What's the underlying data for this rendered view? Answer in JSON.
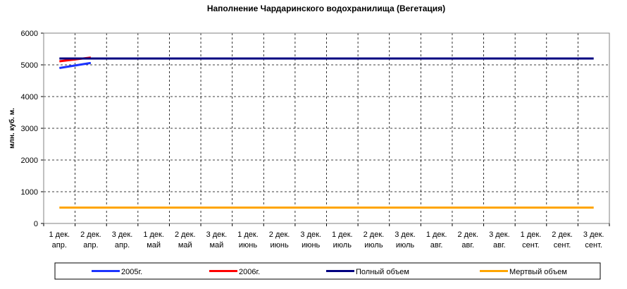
{
  "chart_data": {
    "type": "line",
    "title": "Наполнение Чардаринского водохранилища (Вегетация)",
    "y_label": "млн. куб. м.",
    "categories": [
      [
        "1 дек.",
        "апр."
      ],
      [
        "2 дек.",
        "апр."
      ],
      [
        "3 дек.",
        "апр."
      ],
      [
        "1 дек.",
        "май"
      ],
      [
        "2 дек.",
        "май"
      ],
      [
        "3 дек.",
        "май"
      ],
      [
        "1 дек.",
        "июнь"
      ],
      [
        "2 дек.",
        "июнь"
      ],
      [
        "3 дек.",
        "июнь"
      ],
      [
        "1 дек.",
        "июль"
      ],
      [
        "2 дек.",
        "июль"
      ],
      [
        "3 дек.",
        "июль"
      ],
      [
        "1 дек.",
        "авг."
      ],
      [
        "2 дек.",
        "авг."
      ],
      [
        "3 дек.",
        "авг."
      ],
      [
        "1 дек.",
        "сент."
      ],
      [
        "2 дек.",
        "сент."
      ],
      [
        "3 дек.",
        "сент."
      ]
    ],
    "series": [
      {
        "name": "2005г.",
        "color": "#1c34ff",
        "values": [
          4900,
          5060,
          null,
          null,
          null,
          null,
          null,
          null,
          null,
          null,
          null,
          null,
          null,
          null,
          null,
          null,
          null,
          null
        ]
      },
      {
        "name": "2006г.",
        "color": "#ff0000",
        "values": [
          5110,
          5230,
          null,
          null,
          null,
          null,
          null,
          null,
          null,
          null,
          null,
          null,
          null,
          null,
          null,
          null,
          null,
          null
        ]
      },
      {
        "name": "Полный объем",
        "color": "#000080",
        "values": [
          5200,
          5200,
          5200,
          5200,
          5200,
          5200,
          5200,
          5200,
          5200,
          5200,
          5200,
          5200,
          5200,
          5200,
          5200,
          5200,
          5200,
          5200
        ]
      },
      {
        "name": "Мертвый объем",
        "color": "#ffa500",
        "values": [
          500,
          500,
          500,
          500,
          500,
          500,
          500,
          500,
          500,
          500,
          500,
          500,
          500,
          500,
          500,
          500,
          500,
          500
        ]
      }
    ],
    "ylim": [
      0,
      6000
    ],
    "yticks": [
      0,
      1000,
      2000,
      3000,
      4000,
      5000,
      6000
    ],
    "grid": true,
    "legend": "bottom"
  }
}
